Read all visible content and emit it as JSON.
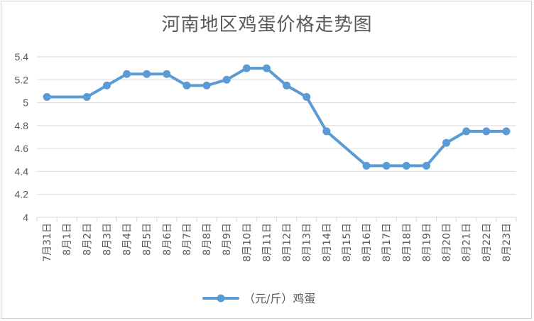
{
  "chart_data": {
    "type": "line",
    "title": "河南地区鸡蛋价格走势图",
    "categories": [
      "7月31日",
      "8月1日",
      "8月2日",
      "8月3日",
      "8月4日",
      "8月5日",
      "8月6日",
      "8月7日",
      "8月8日",
      "8月9日",
      "8月10日",
      "8月11日",
      "8月12日",
      "8月13日",
      "8月14日",
      "8月15日",
      "8月16日",
      "8月17日",
      "8月18日",
      "8月19日",
      "8月20日",
      "8月21日",
      "8月22日",
      "8月23日"
    ],
    "series": [
      {
        "name": "（元/斤）鸡蛋",
        "color": "#5b9bd5",
        "values": [
          5.05,
          null,
          5.05,
          5.15,
          5.25,
          5.25,
          5.25,
          5.15,
          5.15,
          5.2,
          5.3,
          5.3,
          5.15,
          5.05,
          4.75,
          null,
          4.45,
          4.45,
          4.45,
          4.45,
          4.65,
          4.75,
          4.75,
          4.75
        ]
      }
    ],
    "ylim": [
      4,
      5.4
    ],
    "yticks": [
      "4",
      "4.2",
      "4.4",
      "4.6",
      "4.8",
      "5",
      "5.2",
      "5.4"
    ],
    "grid": true,
    "legend_position": "bottom"
  }
}
